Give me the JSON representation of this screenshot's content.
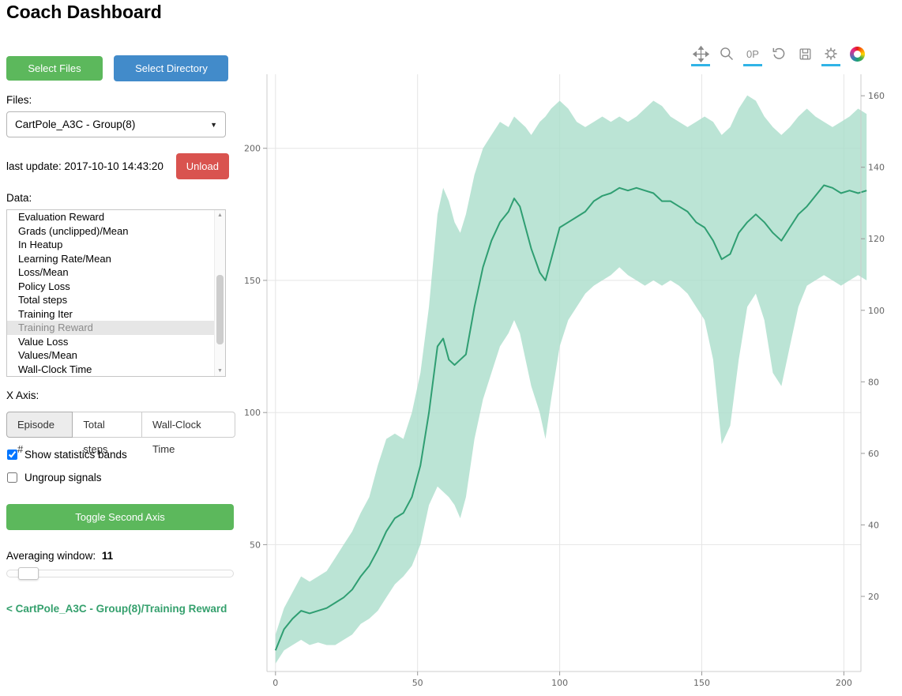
{
  "page": {
    "title": "Coach Dashboard"
  },
  "sidebar": {
    "select_files_label": "Select Files",
    "select_directory_label": "Select Directory",
    "files_label": "Files:",
    "files_selected": "CartPole_A3C - Group(8)",
    "last_update_label": "last update: 2017-10-10 14:43:20",
    "unload_label": "Unload",
    "data_label": "Data:",
    "data_items": [
      "Evaluation Reward",
      "Grads (unclipped)/Mean",
      "In Heatup",
      "Learning Rate/Mean",
      "Loss/Mean",
      "Policy Loss",
      "Total steps",
      "Training Iter",
      "Training Reward",
      "Value Loss",
      "Values/Mean",
      "Wall-Clock Time"
    ],
    "data_selected": "Training Reward",
    "x_axis_label": "X Axis:",
    "x_axis_options": [
      "Episode #",
      "Total steps",
      "Wall-Clock Time"
    ],
    "x_axis_selected": "Episode #",
    "show_bands_label": "Show statistics bands",
    "show_bands_checked": true,
    "ungroup_label": "Ungroup signals",
    "ungroup_checked": false,
    "toggle_second_axis_label": "Toggle Second Axis",
    "averaging_label": "Averaging window:",
    "averaging_value": "11",
    "breadcrumb": "< CartPole_A3C - Group(8)/Training Reward"
  },
  "toolbar": {
    "tools": [
      {
        "name": "pan-tool",
        "icon": "pan",
        "active": true
      },
      {
        "name": "box-zoom-tool",
        "icon": "box-zoom",
        "active": false
      },
      {
        "name": "wheel-zoom-tool",
        "icon": "wheel-zoom",
        "active": true
      },
      {
        "name": "reset-tool",
        "icon": "reset",
        "active": false
      },
      {
        "name": "save-tool",
        "icon": "save",
        "active": false
      },
      {
        "name": "hover-tool",
        "icon": "hover",
        "active": true
      },
      {
        "name": "bokeh-logo",
        "icon": "logo",
        "active": false
      }
    ]
  },
  "chart_data": {
    "type": "line",
    "title": "CartPole_A3C - Group(8)/Training Reward",
    "xlabel": "Episode #",
    "ylabel": "Training Reward",
    "line_color": "#2f9e72",
    "band_color": "#aaddca",
    "xlim": [
      -3,
      206
    ],
    "ylim_left": [
      2,
      228
    ],
    "ylim_right": [
      -1,
      166
    ],
    "x_ticks": [
      0,
      50,
      100,
      150,
      200
    ],
    "y_ticks_left": [
      50,
      100,
      150,
      200
    ],
    "y_ticks_right": [
      20,
      40,
      60,
      80,
      100,
      120,
      140,
      160
    ],
    "grid": true,
    "x": [
      0,
      3,
      6,
      9,
      12,
      15,
      18,
      21,
      24,
      27,
      30,
      33,
      36,
      39,
      42,
      45,
      48,
      51,
      54,
      57,
      59,
      61,
      63,
      65,
      67,
      70,
      73,
      76,
      79,
      82,
      84,
      86,
      88,
      90,
      93,
      95,
      97,
      100,
      103,
      106,
      109,
      112,
      115,
      118,
      121,
      124,
      127,
      130,
      133,
      136,
      139,
      142,
      145,
      148,
      151,
      154,
      157,
      160,
      163,
      166,
      169,
      172,
      175,
      178,
      181,
      184,
      187,
      190,
      193,
      196,
      199,
      202,
      205,
      208
    ],
    "mean": [
      10,
      18,
      22,
      25,
      24,
      25,
      26,
      28,
      30,
      33,
      38,
      42,
      48,
      55,
      60,
      62,
      68,
      80,
      100,
      125,
      128,
      120,
      118,
      120,
      122,
      140,
      155,
      165,
      172,
      176,
      181,
      178,
      170,
      162,
      153,
      150,
      158,
      170,
      172,
      174,
      176,
      180,
      182,
      183,
      185,
      184,
      185,
      184,
      183,
      180,
      180,
      178,
      176,
      172,
      170,
      165,
      158,
      160,
      168,
      172,
      175,
      172,
      168,
      165,
      170,
      175,
      178,
      182,
      186,
      185,
      183,
      184,
      183,
      184
    ],
    "upper": [
      16,
      26,
      32,
      38,
      36,
      38,
      40,
      45,
      50,
      55,
      62,
      68,
      80,
      90,
      92,
      90,
      100,
      115,
      140,
      175,
      185,
      180,
      172,
      168,
      175,
      190,
      200,
      205,
      210,
      208,
      212,
      210,
      208,
      205,
      210,
      212,
      215,
      218,
      215,
      210,
      208,
      210,
      212,
      210,
      212,
      210,
      212,
      215,
      218,
      216,
      212,
      210,
      208,
      210,
      212,
      210,
      205,
      208,
      215,
      220,
      218,
      212,
      208,
      205,
      208,
      212,
      215,
      212,
      210,
      208,
      210,
      212,
      215,
      213
    ],
    "lower": [
      5,
      10,
      12,
      14,
      12,
      13,
      12,
      12,
      14,
      16,
      20,
      22,
      25,
      30,
      35,
      38,
      42,
      50,
      65,
      72,
      70,
      68,
      65,
      60,
      68,
      90,
      105,
      115,
      125,
      130,
      135,
      130,
      120,
      110,
      100,
      90,
      105,
      125,
      135,
      140,
      145,
      148,
      150,
      152,
      155,
      152,
      150,
      148,
      150,
      148,
      150,
      148,
      145,
      140,
      135,
      120,
      88,
      95,
      120,
      140,
      145,
      135,
      115,
      110,
      125,
      140,
      148,
      150,
      152,
      150,
      148,
      150,
      152,
      150
    ]
  }
}
